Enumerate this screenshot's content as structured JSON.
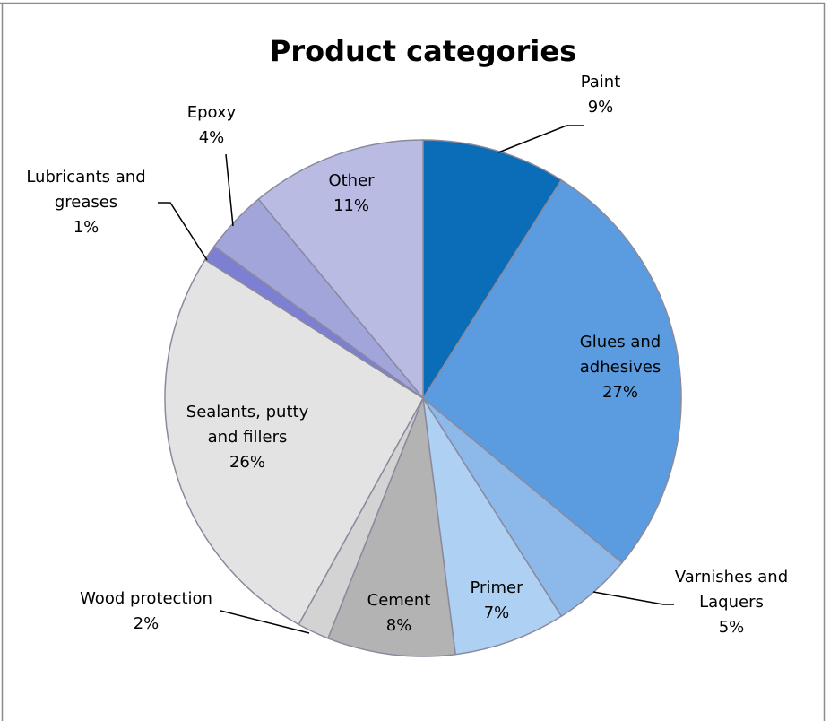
{
  "chart_data": {
    "type": "pie",
    "title": "Product categories",
    "slices": [
      {
        "label": [
          "Paint"
        ],
        "pct_label": "9%",
        "value": 9,
        "color": "#0B6DB8"
      },
      {
        "label": [
          "Glues and",
          "adhesives"
        ],
        "pct_label": "27%",
        "value": 27,
        "color": "#5B9BE0"
      },
      {
        "label": [
          "Varnishes and",
          "Laquers"
        ],
        "pct_label": "5%",
        "value": 5,
        "color": "#8CB9EA"
      },
      {
        "label": [
          "Primer"
        ],
        "pct_label": "7%",
        "value": 7,
        "color": "#AED0F2"
      },
      {
        "label": [
          "Cement"
        ],
        "pct_label": "8%",
        "value": 8,
        "color": "#B3B3B3"
      },
      {
        "label": [
          "Wood protection"
        ],
        "pct_label": "2%",
        "value": 2,
        "color": "#D3D3D3"
      },
      {
        "label": [
          "Sealants, putty",
          "and fillers"
        ],
        "pct_label": "26%",
        "value": 26,
        "color": "#E3E3E3"
      },
      {
        "label": [
          "Lubricants and",
          "greases"
        ],
        "pct_label": "1%",
        "value": 1,
        "color": "#7C7FD2"
      },
      {
        "label": [
          "Epoxy"
        ],
        "pct_label": "4%",
        "value": 4,
        "color": "#A1A5DA"
      },
      {
        "label": [
          "Other"
        ],
        "pct_label": "11%",
        "value": 11,
        "color": "#B9BBE3"
      }
    ],
    "edge_color": "#8A8A9E",
    "leader_color": "#000000"
  }
}
